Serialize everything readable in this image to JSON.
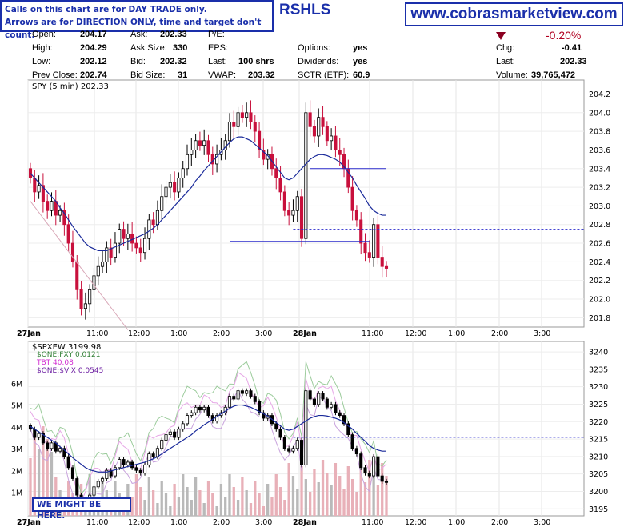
{
  "notes": {
    "line1": "Calls on this chart are for DAY TRADE only.",
    "line2": "Arrows are for DIRECTION ONLY, time and target don't count.",
    "bottom_note": "WE MIGHT BE HERE."
  },
  "symbol": "RSHLS",
  "site": "www.cobrasmarketview.com",
  "quote": {
    "open_label": "Open:",
    "open": "204.17",
    "high_label": "High:",
    "high": "204.29",
    "low_label": "Low:",
    "low": "202.12",
    "prev_close_label": "Prev Close:",
    "prev_close": "202.74",
    "ask_label": "Ask:",
    "ask": "202.33",
    "ask_size_label": "Ask Size:",
    "ask_size": "330",
    "bid_label": "Bid:",
    "bid": "202.32",
    "bid_size_label": "Bid Size:",
    "bid_size": "31",
    "pe_label": "P/E:",
    "eps_label": "EPS:",
    "last_label": "Last:",
    "last_shares": "100 shrs",
    "vwap_label": "VWAP:",
    "vwap": "203.32",
    "options_label": "Options:",
    "options": "yes",
    "dividends_label": "Dividends:",
    "dividends": "yes",
    "sctr_label": "SCTR (ETF):",
    "sctr": "60.9",
    "pct_change": "-0.20%",
    "chg_label": "Chg:",
    "chg": "-0.41",
    "last2_label": "Last:",
    "last2": "202.33",
    "volume_label": "Volume:",
    "volume": "39,765,472"
  },
  "colors": {
    "up": "#000000",
    "down": "#c8103c",
    "ma": "#1a2a9a",
    "ma_slow": "#d9a8b8",
    "dashed": "#2a2acc",
    "vol_up": "#b9b9b9",
    "vol_down": "#e8b0b8",
    "brand": "#1a2faa"
  },
  "chart_data": [
    {
      "type": "candlestick",
      "title": "SPY (5 min) 202.33",
      "y_ticks": [
        "204.2",
        "204.0",
        "203.8",
        "203.6",
        "203.4",
        "203.2",
        "203.0",
        "202.8",
        "202.6",
        "202.4",
        "202.2",
        "202.0",
        "201.8"
      ],
      "ylim": [
        201.7,
        204.35
      ],
      "x_ticks": [
        "27Jan",
        "11:00",
        "12:00",
        "1:00",
        "2:00",
        "3:00",
        "28Jan",
        "11:00",
        "12:00",
        "1:00",
        "2:00",
        "3:00"
      ],
      "close": [
        203.3,
        203.15,
        203.22,
        203.05,
        202.95,
        203.05,
        202.9,
        202.95,
        202.8,
        202.6,
        202.4,
        202.1,
        201.9,
        201.95,
        202.1,
        202.25,
        202.35,
        202.4,
        202.55,
        202.45,
        202.6,
        202.75,
        202.65,
        202.7,
        202.6,
        202.55,
        202.5,
        202.65,
        202.85,
        202.8,
        202.95,
        203.1,
        203.2,
        203.25,
        203.15,
        203.3,
        203.4,
        203.55,
        203.6,
        203.7,
        203.65,
        203.7,
        203.55,
        203.45,
        203.55,
        203.6,
        203.7,
        203.9,
        203.85,
        204.0,
        203.95,
        204.0,
        203.9,
        203.8,
        203.6,
        203.5,
        203.55,
        203.4,
        203.3,
        203.15,
        202.95,
        202.9,
        202.95,
        203.1,
        202.65,
        204.0,
        203.85,
        203.75,
        203.95,
        203.85,
        203.7,
        203.75,
        203.6,
        203.55,
        203.4,
        203.2,
        202.95,
        202.85,
        202.6,
        202.5,
        202.45,
        202.8,
        202.45,
        202.35,
        202.33
      ],
      "ma_fast": [
        203.35,
        203.3,
        203.25,
        203.2,
        203.15,
        203.1,
        203.05,
        202.98,
        202.92,
        202.85,
        202.78,
        202.72,
        202.66,
        202.6,
        202.56,
        202.54,
        202.52,
        202.52,
        202.52,
        202.54,
        202.56,
        202.58,
        202.6,
        202.62,
        202.64,
        202.66,
        202.68,
        202.7,
        202.73,
        202.76,
        202.8,
        202.85,
        202.9,
        202.95,
        203.0,
        203.05,
        203.1,
        203.15,
        203.2,
        203.27,
        203.32,
        203.38,
        203.43,
        203.48,
        203.53,
        203.58,
        203.63,
        203.68,
        203.72,
        203.74,
        203.74,
        203.72,
        203.7,
        203.66,
        203.62,
        203.58,
        203.54,
        203.48,
        203.42,
        203.36,
        203.3,
        203.28,
        203.3,
        203.35,
        203.4,
        203.45,
        203.5,
        203.53,
        203.55,
        203.55,
        203.54,
        203.52,
        203.5,
        203.47,
        203.42,
        203.36,
        203.3,
        203.22,
        203.15,
        203.08,
        203.0,
        202.95,
        202.92,
        202.9,
        202.9
      ],
      "ref_lines": [
        {
          "y": 203.4,
          "x_from": 66,
          "x_to": 84,
          "style": "solid"
        },
        {
          "y": 202.62,
          "x_from": 47,
          "x_to": 80,
          "style": "solid"
        },
        {
          "y": 202.75,
          "x_from": 62,
          "x_to": 130,
          "style": "dashed"
        }
      ]
    },
    {
      "type": "line",
      "title": "$SPXEW 3199.98",
      "legend": [
        "$ONE:FXY 0.0121",
        "TBT 40.08",
        "$ONE:$VIX 0.0545"
      ],
      "y_ticks": [
        "3240",
        "3235",
        "3230",
        "3225",
        "3220",
        "3215",
        "3210",
        "3205",
        "3200",
        "3195"
      ],
      "ylim": [
        3193,
        3243
      ],
      "volume_ticks": [
        "6M",
        "5M",
        "4M",
        "3M",
        "2M",
        "1M"
      ],
      "x_ticks": [
        "27Jan",
        "11:00",
        "12:00",
        "1:00",
        "2:00",
        "3:00",
        "28Jan",
        "11:00",
        "12:00",
        "1:00",
        "2:00",
        "3:00"
      ],
      "ref_lines": [
        {
          "y": 3215.5,
          "x_from": 62,
          "x_to": 130,
          "style": "dashed"
        }
      ]
    }
  ]
}
